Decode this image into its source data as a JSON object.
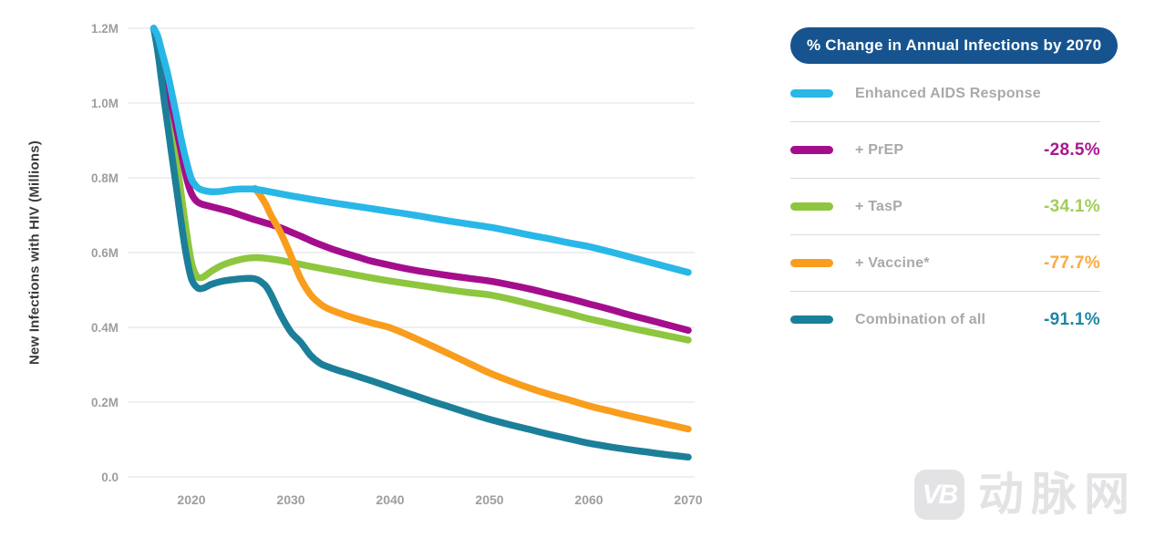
{
  "page": {
    "background": "#ffffff"
  },
  "chart_data": {
    "type": "line",
    "title": "",
    "xlabel": "",
    "ylabel": "New Infections with HIV (Millions)",
    "xlim": [
      2015.5,
      2071
    ],
    "ylim": [
      0,
      1.2
    ],
    "grid": "horizontal",
    "legend_position": "right",
    "x_ticks": [
      {
        "v": 2020,
        "label": "2020"
      },
      {
        "v": 2030,
        "label": "2030"
      },
      {
        "v": 2040,
        "label": "2040"
      },
      {
        "v": 2050,
        "label": "2050"
      },
      {
        "v": 2060,
        "label": "2060"
      },
      {
        "v": 2070,
        "label": "2070"
      }
    ],
    "y_ticks": [
      {
        "v": 1.2,
        "label": "1.2M"
      },
      {
        "v": 1.0,
        "label": "1.0M"
      },
      {
        "v": 0.8,
        "label": "0.8M"
      },
      {
        "v": 0.6,
        "label": "0.6M"
      },
      {
        "v": 0.4,
        "label": "0.4M"
      },
      {
        "v": 0.2,
        "label": "0.2M"
      },
      {
        "v": 0.0,
        "label": "0.0"
      }
    ],
    "series": [
      {
        "name": "Enhanced AIDS Response",
        "color": "#29b7e8",
        "zorder": 5,
        "points": [
          [
            2016.2,
            1.2
          ],
          [
            2016.6,
            1.18
          ],
          [
            2017,
            1.14
          ],
          [
            2017.5,
            1.09
          ],
          [
            2018,
            1.03
          ],
          [
            2018.5,
            0.965
          ],
          [
            2019,
            0.9
          ],
          [
            2019.5,
            0.843
          ],
          [
            2020,
            0.797
          ],
          [
            2020.5,
            0.777
          ],
          [
            2021,
            0.768
          ],
          [
            2022,
            0.763
          ],
          [
            2023,
            0.764
          ],
          [
            2024,
            0.768
          ],
          [
            2025,
            0.77
          ],
          [
            2026,
            0.77
          ],
          [
            2027,
            0.767
          ],
          [
            2028,
            0.762
          ],
          [
            2030,
            0.752
          ],
          [
            2032,
            0.743
          ],
          [
            2034,
            0.734
          ],
          [
            2036,
            0.726
          ],
          [
            2038,
            0.718
          ],
          [
            2040,
            0.71
          ],
          [
            2042,
            0.702
          ],
          [
            2044,
            0.693
          ],
          [
            2046,
            0.684
          ],
          [
            2048,
            0.676
          ],
          [
            2050,
            0.668
          ],
          [
            2052,
            0.658
          ],
          [
            2054,
            0.647
          ],
          [
            2056,
            0.637
          ],
          [
            2058,
            0.626
          ],
          [
            2060,
            0.616
          ],
          [
            2062,
            0.603
          ],
          [
            2064,
            0.589
          ],
          [
            2066,
            0.575
          ],
          [
            2068,
            0.561
          ],
          [
            2070,
            0.547
          ]
        ]
      },
      {
        "name": "+ PrEP",
        "color": "#a40e8d",
        "zorder": 2,
        "points": [
          [
            2016.2,
            1.2
          ],
          [
            2016.6,
            1.17
          ],
          [
            2017,
            1.12
          ],
          [
            2017.5,
            1.06
          ],
          [
            2018,
            0.995
          ],
          [
            2018.5,
            0.93
          ],
          [
            2019,
            0.865
          ],
          [
            2019.5,
            0.8
          ],
          [
            2020,
            0.758
          ],
          [
            2020.5,
            0.738
          ],
          [
            2021,
            0.73
          ],
          [
            2022,
            0.723
          ],
          [
            2023,
            0.716
          ],
          [
            2024,
            0.709
          ],
          [
            2025,
            0.7
          ],
          [
            2026,
            0.691
          ],
          [
            2027,
            0.683
          ],
          [
            2028,
            0.675
          ],
          [
            2029,
            0.666
          ],
          [
            2030,
            0.655
          ],
          [
            2031,
            0.644
          ],
          [
            2032,
            0.632
          ],
          [
            2033,
            0.621
          ],
          [
            2034,
            0.611
          ],
          [
            2035,
            0.602
          ],
          [
            2036,
            0.594
          ],
          [
            2037,
            0.586
          ],
          [
            2038,
            0.578
          ],
          [
            2039,
            0.572
          ],
          [
            2040,
            0.566
          ],
          [
            2042,
            0.555
          ],
          [
            2044,
            0.546
          ],
          [
            2046,
            0.538
          ],
          [
            2048,
            0.531
          ],
          [
            2050,
            0.524
          ],
          [
            2052,
            0.514
          ],
          [
            2054,
            0.503
          ],
          [
            2056,
            0.49
          ],
          [
            2058,
            0.477
          ],
          [
            2060,
            0.463
          ],
          [
            2062,
            0.449
          ],
          [
            2064,
            0.434
          ],
          [
            2066,
            0.42
          ],
          [
            2068,
            0.406
          ],
          [
            2070,
            0.392
          ]
        ]
      },
      {
        "name": "+ TasP",
        "color": "#8ec63f",
        "zorder": 1,
        "points": [
          [
            2016.2,
            1.2
          ],
          [
            2016.6,
            1.16
          ],
          [
            2017,
            1.1
          ],
          [
            2017.5,
            1.02
          ],
          [
            2018,
            0.935
          ],
          [
            2018.5,
            0.845
          ],
          [
            2019,
            0.75
          ],
          [
            2019.5,
            0.655
          ],
          [
            2020,
            0.575
          ],
          [
            2020.5,
            0.538
          ],
          [
            2021,
            0.533
          ],
          [
            2021.5,
            0.54
          ],
          [
            2022,
            0.55
          ],
          [
            2023,
            0.565
          ],
          [
            2024,
            0.575
          ],
          [
            2025,
            0.582
          ],
          [
            2026,
            0.586
          ],
          [
            2027,
            0.586
          ],
          [
            2028,
            0.583
          ],
          [
            2029,
            0.579
          ],
          [
            2030,
            0.574
          ],
          [
            2032,
            0.563
          ],
          [
            2034,
            0.553
          ],
          [
            2036,
            0.543
          ],
          [
            2038,
            0.533
          ],
          [
            2040,
            0.524
          ],
          [
            2042,
            0.516
          ],
          [
            2044,
            0.508
          ],
          [
            2046,
            0.5
          ],
          [
            2048,
            0.493
          ],
          [
            2050,
            0.487
          ],
          [
            2052,
            0.476
          ],
          [
            2054,
            0.463
          ],
          [
            2056,
            0.45
          ],
          [
            2058,
            0.437
          ],
          [
            2060,
            0.423
          ],
          [
            2062,
            0.411
          ],
          [
            2064,
            0.399
          ],
          [
            2066,
            0.388
          ],
          [
            2068,
            0.377
          ],
          [
            2070,
            0.366
          ]
        ]
      },
      {
        "name": "+ Vaccine*",
        "color": "#f99d1d",
        "zorder": 3,
        "points": [
          [
            2026.4,
            0.772
          ],
          [
            2027,
            0.75
          ],
          [
            2027.5,
            0.728
          ],
          [
            2028,
            0.7
          ],
          [
            2029,
            0.652
          ],
          [
            2030,
            0.592
          ],
          [
            2031,
            0.53
          ],
          [
            2032,
            0.487
          ],
          [
            2033,
            0.462
          ],
          [
            2033.6,
            0.452
          ],
          [
            2034,
            0.447
          ],
          [
            2035,
            0.437
          ],
          [
            2036,
            0.428
          ],
          [
            2038,
            0.413
          ],
          [
            2040,
            0.399
          ],
          [
            2042,
            0.377
          ],
          [
            2044,
            0.353
          ],
          [
            2046,
            0.328
          ],
          [
            2048,
            0.303
          ],
          [
            2050,
            0.278
          ],
          [
            2052,
            0.257
          ],
          [
            2054,
            0.238
          ],
          [
            2056,
            0.221
          ],
          [
            2058,
            0.206
          ],
          [
            2060,
            0.19
          ],
          [
            2062,
            0.177
          ],
          [
            2064,
            0.164
          ],
          [
            2066,
            0.152
          ],
          [
            2068,
            0.14
          ],
          [
            2070,
            0.128
          ]
        ]
      },
      {
        "name": "Combination of all",
        "color": "#1c7f99",
        "zorder": 4,
        "points": [
          [
            2016.2,
            1.2
          ],
          [
            2016.6,
            1.14
          ],
          [
            2017,
            1.06
          ],
          [
            2017.5,
            0.96
          ],
          [
            2018,
            0.865
          ],
          [
            2018.5,
            0.77
          ],
          [
            2019,
            0.675
          ],
          [
            2019.5,
            0.59
          ],
          [
            2020,
            0.53
          ],
          [
            2020.6,
            0.506
          ],
          [
            2021.2,
            0.505
          ],
          [
            2022,
            0.515
          ],
          [
            2023,
            0.523
          ],
          [
            2024,
            0.527
          ],
          [
            2025,
            0.53
          ],
          [
            2026,
            0.531
          ],
          [
            2026.6,
            0.528
          ],
          [
            2027,
            0.522
          ],
          [
            2027.5,
            0.51
          ],
          [
            2028,
            0.488
          ],
          [
            2029,
            0.433
          ],
          [
            2030,
            0.388
          ],
          [
            2031,
            0.36
          ],
          [
            2032,
            0.325
          ],
          [
            2033,
            0.303
          ],
          [
            2034,
            0.292
          ],
          [
            2035,
            0.283
          ],
          [
            2036,
            0.275
          ],
          [
            2038,
            0.258
          ],
          [
            2040,
            0.24
          ],
          [
            2042,
            0.222
          ],
          [
            2044,
            0.204
          ],
          [
            2046,
            0.187
          ],
          [
            2048,
            0.17
          ],
          [
            2050,
            0.154
          ],
          [
            2052,
            0.14
          ],
          [
            2054,
            0.127
          ],
          [
            2056,
            0.114
          ],
          [
            2058,
            0.102
          ],
          [
            2060,
            0.09
          ],
          [
            2062,
            0.081
          ],
          [
            2064,
            0.073
          ],
          [
            2066,
            0.066
          ],
          [
            2068,
            0.059
          ],
          [
            2070,
            0.053
          ]
        ]
      }
    ]
  },
  "legend": {
    "title": "% Change in Annual Infections by 2070",
    "title_bg": "#17548f",
    "items": [
      {
        "label": "Enhanced AIDS Response",
        "pct": "",
        "color": "#29b7e8",
        "pct_color": "#29b7e8"
      },
      {
        "label": "+ PrEP",
        "pct": "-28.5%",
        "color": "#a40e8d",
        "pct_color": "#a8188f"
      },
      {
        "label": "+ TasP",
        "pct": "-34.1%",
        "color": "#8ec63f",
        "pct_color": "#a3cd5a"
      },
      {
        "label": "+ Vaccine*",
        "pct": "-77.7%",
        "color": "#f99d1d",
        "pct_color": "#fbaa3d"
      },
      {
        "label": "Combination of all",
        "pct": "-91.1%",
        "color": "#1c7f99",
        "pct_color": "#1f87a3"
      }
    ]
  },
  "watermark": {
    "logo_text": "VB",
    "text": "动脉网",
    "color": "#e3e3e5"
  },
  "style": {
    "grid_color": "#e9eaeb",
    "tick_color": "#9c9ea1"
  }
}
